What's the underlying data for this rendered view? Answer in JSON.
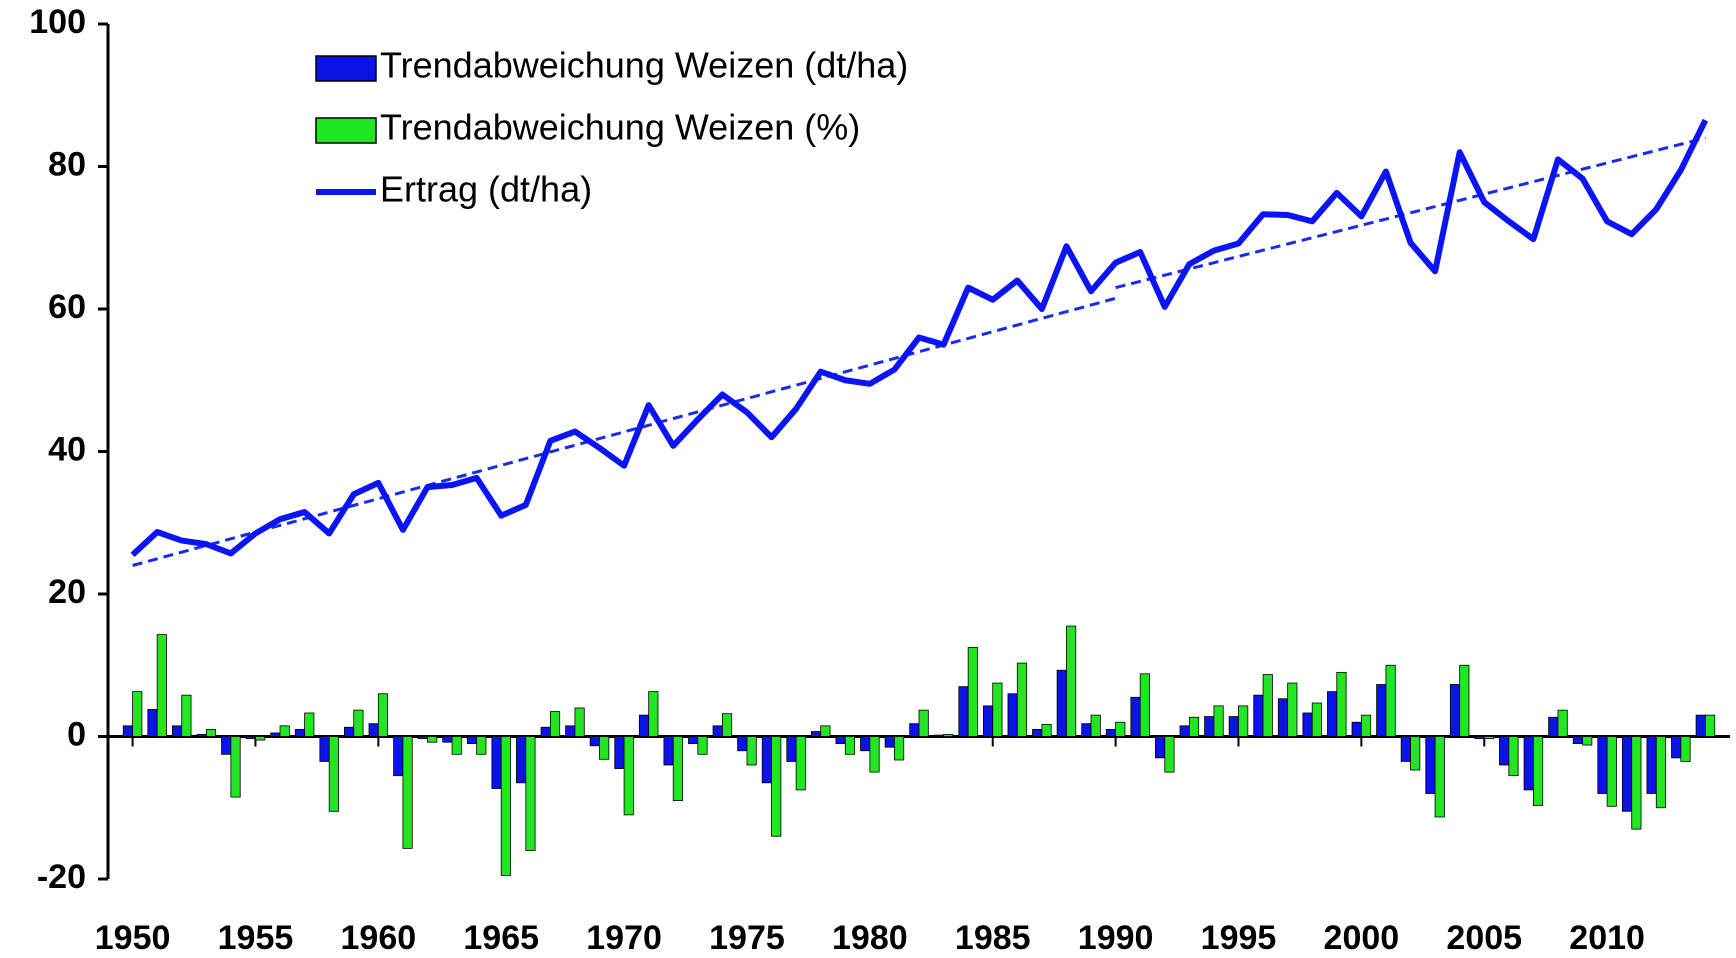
{
  "chart_data": {
    "type": "bar_line",
    "x": [
      1950,
      1951,
      1952,
      1953,
      1954,
      1955,
      1956,
      1957,
      1958,
      1959,
      1960,
      1961,
      1962,
      1963,
      1964,
      1965,
      1966,
      1967,
      1968,
      1969,
      1970,
      1971,
      1972,
      1973,
      1974,
      1975,
      1976,
      1977,
      1978,
      1979,
      1980,
      1981,
      1982,
      1983,
      1984,
      1985,
      1986,
      1987,
      1988,
      1989,
      1990,
      1991,
      1992,
      1993,
      1994,
      1995,
      1996,
      1997,
      1998,
      1999,
      2000,
      2001,
      2002,
      2003,
      2004,
      2005,
      2006,
      2007,
      2008,
      2009,
      2010,
      2011,
      2012,
      2013,
      2014
    ],
    "series": [
      {
        "name": "Trendabweichung Weizen (dt/ha)",
        "kind": "bar",
        "color": "#0a14e6",
        "values": [
          1.5,
          3.8,
          1.5,
          0.3,
          -2.5,
          -0.3,
          0.5,
          1,
          -3.5,
          1.3,
          1.8,
          -5.5,
          -0.3,
          -0.8,
          -1,
          -7.3,
          -6.5,
          1.3,
          1.5,
          -1.3,
          -4.5,
          3,
          -4,
          -1,
          1.5,
          -2,
          -6.5,
          -3.5,
          0.7,
          -1,
          -2,
          -1.5,
          1.8,
          0.2,
          7,
          4.3,
          6,
          1,
          9.3,
          1.8,
          1,
          5.5,
          -3,
          1.5,
          2.8,
          2.8,
          5.8,
          5.3,
          3.3,
          6.3,
          2,
          7.3,
          -3.5,
          -8,
          7.3,
          -0.3,
          -4,
          -7.5,
          2.7,
          -1,
          -8,
          -10.5,
          -8,
          -3,
          3
        ]
      },
      {
        "name": "Trendabweichung Weizen (%)",
        "kind": "bar",
        "color": "#22e622",
        "values": [
          6.3,
          14.3,
          5.8,
          1,
          -8.5,
          -0.5,
          1.5,
          3.3,
          -10.5,
          3.7,
          6,
          -15.7,
          -0.8,
          -2.5,
          -2.5,
          -19.5,
          -16,
          3.5,
          4,
          -3.2,
          -11,
          6.3,
          -9,
          -2.5,
          3.2,
          -4,
          -14,
          -7.5,
          1.5,
          -2.5,
          -5,
          -3.3,
          3.7,
          0.3,
          12.5,
          7.5,
          10.3,
          1.7,
          15.5,
          3,
          2,
          8.8,
          -5,
          2.7,
          4.3,
          4.3,
          8.7,
          7.5,
          4.7,
          9,
          3,
          10,
          -4.7,
          -11.3,
          10,
          -0.3,
          -5.5,
          -9.7,
          3.7,
          -1.2,
          -9.8,
          -13,
          -10,
          -3.5,
          3
        ]
      },
      {
        "name": "Ertrag (dt/ha)",
        "kind": "line",
        "color": "#0a14f5",
        "values": [
          25.5,
          28.7,
          27.5,
          27,
          25.7,
          28.5,
          30.5,
          31.5,
          28.5,
          34,
          35.6,
          29,
          35,
          35.3,
          36.3,
          31,
          32.5,
          41.5,
          42.8,
          40.5,
          38,
          46.5,
          40.8,
          44.5,
          48,
          45.5,
          42,
          46,
          51.2,
          50,
          49.5,
          51.5,
          56,
          55,
          63,
          61.3,
          64,
          60,
          68.8,
          62.5,
          66.5,
          68,
          60.3,
          66.3,
          68.2,
          69.2,
          73.3,
          73.2,
          72.3,
          76.3,
          73,
          79.3,
          69.3,
          65.3,
          82,
          75,
          72.3,
          69.8,
          81,
          78.3,
          72.3,
          70.5,
          74,
          79.5,
          86.5
        ]
      }
    ],
    "trend_lines": [
      {
        "x": [
          1950,
          1990
        ],
        "values": [
          24,
          61.5
        ]
      },
      {
        "x": [
          1990,
          2014
        ],
        "values": [
          63,
          84
        ]
      }
    ],
    "trend_color": "#1a2af0",
    "xlim": [
      1949,
      2015
    ],
    "xticks": [
      1950,
      1955,
      1960,
      1965,
      1970,
      1975,
      1980,
      1985,
      1990,
      1995,
      2000,
      2005,
      2010
    ],
    "ylim": [
      -20,
      100
    ],
    "yticks": [
      -20,
      0,
      20,
      40,
      60,
      80,
      100
    ],
    "legend": "upper left"
  }
}
